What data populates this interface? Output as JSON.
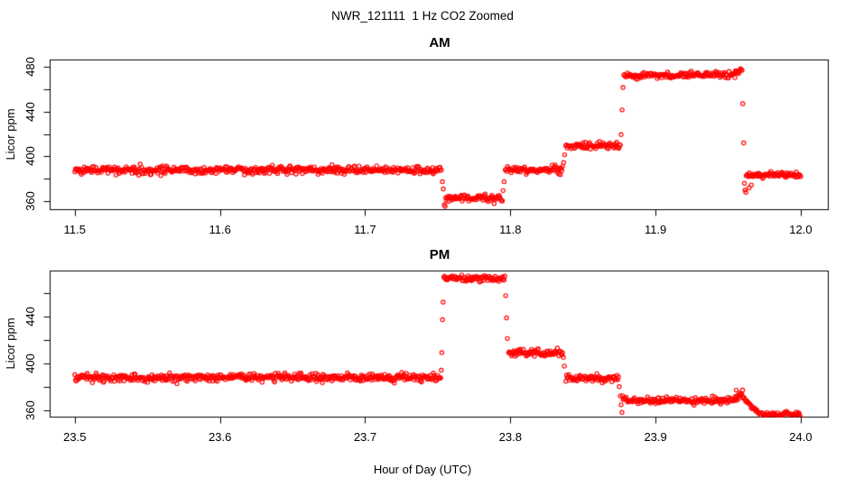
{
  "figure": {
    "title": "NWR_121111  1 Hz CO2 Zoomed",
    "xlabel": "Hour of Day (UTC)",
    "point_color": "#FF0000",
    "axis_color": "#000000",
    "background": "#FFFFFF"
  },
  "chart_data": [
    {
      "type": "scatter",
      "title": "AM",
      "ylabel": "Licor ppm",
      "marker": "open-circle",
      "color": "#FF0000",
      "sample_rate_hz": 1,
      "xlim": [
        11.483,
        12.019
      ],
      "ylim": [
        352.5,
        486.0
      ],
      "x_ticks": [
        11.5,
        11.6,
        11.7,
        11.8,
        11.9,
        12.0
      ],
      "x_tick_labels": [
        "11.5",
        "11.6",
        "11.7",
        "11.8",
        "11.9",
        "12.0"
      ],
      "y_ticks": [
        360,
        380,
        400,
        420,
        440,
        460,
        480
      ],
      "y_ticks_labeled": [
        360,
        400,
        440,
        480
      ],
      "y_tick_labels": [
        "360",
        "400",
        "440",
        "480"
      ],
      "grid": false,
      "segments": [
        {
          "t0": 11.5,
          "t1": 11.7525,
          "v0": 387.8,
          "v1": 387.8,
          "noise": 1.7
        },
        {
          "t0": 11.7555,
          "t1": 11.7945,
          "v0": 362.8,
          "v1": 362.8,
          "noise": 1.5
        },
        {
          "t0": 11.7965,
          "t1": 11.836,
          "v0": 388.0,
          "v1": 388.0,
          "noise": 1.6
        },
        {
          "t0": 11.8382,
          "t1": 11.8758,
          "v0": 409.5,
          "v1": 409.5,
          "noise": 1.5
        },
        {
          "t0": 11.8782,
          "t1": 11.9552,
          "v0": 472.5,
          "v1": 472.5,
          "noise": 1.4
        },
        {
          "t0": 11.9552,
          "t1": 11.9596,
          "v0": 474.5,
          "v1": 477.5,
          "noise": 1.3
        },
        {
          "t0": 11.9625,
          "t1": 12.0,
          "v0": 383.5,
          "v1": 383.5,
          "noise": 1.2
        }
      ],
      "transition_points": [
        [
          11.7532,
          377.5
        ],
        [
          11.7538,
          371.0
        ],
        [
          11.7545,
          357.0
        ],
        [
          11.7551,
          355.5
        ],
        [
          11.795,
          369.5
        ],
        [
          11.7957,
          377.5
        ],
        [
          11.8367,
          394.5
        ],
        [
          11.8374,
          401.5
        ],
        [
          11.8763,
          419.5
        ],
        [
          11.877,
          441.5
        ],
        [
          11.8776,
          461.5
        ],
        [
          11.9601,
          447.0
        ],
        [
          11.9607,
          412.0
        ],
        [
          11.9612,
          376.0
        ],
        [
          11.9616,
          370.0
        ],
        [
          11.9622,
          368.0
        ],
        [
          11.9645,
          372.0
        ],
        [
          11.966,
          374.5
        ]
      ]
    },
    {
      "type": "scatter",
      "title": "PM",
      "ylabel": "Licor ppm",
      "marker": "open-circle",
      "color": "#FF0000",
      "sample_rate_hz": 1,
      "xlim": [
        23.483,
        24.019
      ],
      "ylim": [
        354.5,
        479.0
      ],
      "x_ticks": [
        23.5,
        23.6,
        23.7,
        23.8,
        23.9,
        24.0
      ],
      "x_tick_labels": [
        "23.5",
        "23.6",
        "23.7",
        "23.8",
        "23.9",
        "24.0"
      ],
      "y_ticks": [
        360,
        380,
        400,
        420,
        440,
        460
      ],
      "y_ticks_labeled": [
        360,
        400,
        440
      ],
      "y_tick_labels": [
        "360",
        "400",
        "440"
      ],
      "grid": false,
      "segments": [
        {
          "t0": 23.5,
          "t1": 23.752,
          "v0": 388.2,
          "v1": 388.2,
          "noise": 1.7
        },
        {
          "t0": 23.7542,
          "t1": 23.7962,
          "v0": 473.0,
          "v1": 473.0,
          "noise": 1.4
        },
        {
          "t0": 23.7988,
          "t1": 23.836,
          "v0": 409.5,
          "v1": 409.5,
          "noise": 1.5
        },
        {
          "t0": 23.8382,
          "t1": 23.8745,
          "v0": 387.5,
          "v1": 387.5,
          "noise": 1.5
        },
        {
          "t0": 23.8772,
          "t1": 23.956,
          "v0": 368.5,
          "v1": 368.5,
          "noise": 1.4
        },
        {
          "t0": 23.956,
          "t1": 23.96,
          "v0": 371.5,
          "v1": 375.5,
          "noise": 1.2
        },
        {
          "t0": 23.96,
          "t1": 23.9718,
          "v0": 371.0,
          "v1": 357.5,
          "noise": 1.0
        },
        {
          "t0": 23.9718,
          "t1": 24.0,
          "v0": 356.5,
          "v1": 356.5,
          "noise": 1.2
        }
      ],
      "transition_points": [
        [
          23.7524,
          394.5
        ],
        [
          23.7528,
          409.5
        ],
        [
          23.7533,
          437.5
        ],
        [
          23.7537,
          452.5
        ],
        [
          23.7968,
          458.0
        ],
        [
          23.7974,
          439.0
        ],
        [
          23.798,
          421.5
        ],
        [
          23.8366,
          405.5
        ],
        [
          23.8372,
          398.0
        ],
        [
          23.875,
          380.5
        ],
        [
          23.8757,
          372.5
        ],
        [
          23.8763,
          365.0
        ],
        [
          23.8769,
          358.5
        ],
        [
          23.9556,
          377.5
        ]
      ]
    }
  ]
}
